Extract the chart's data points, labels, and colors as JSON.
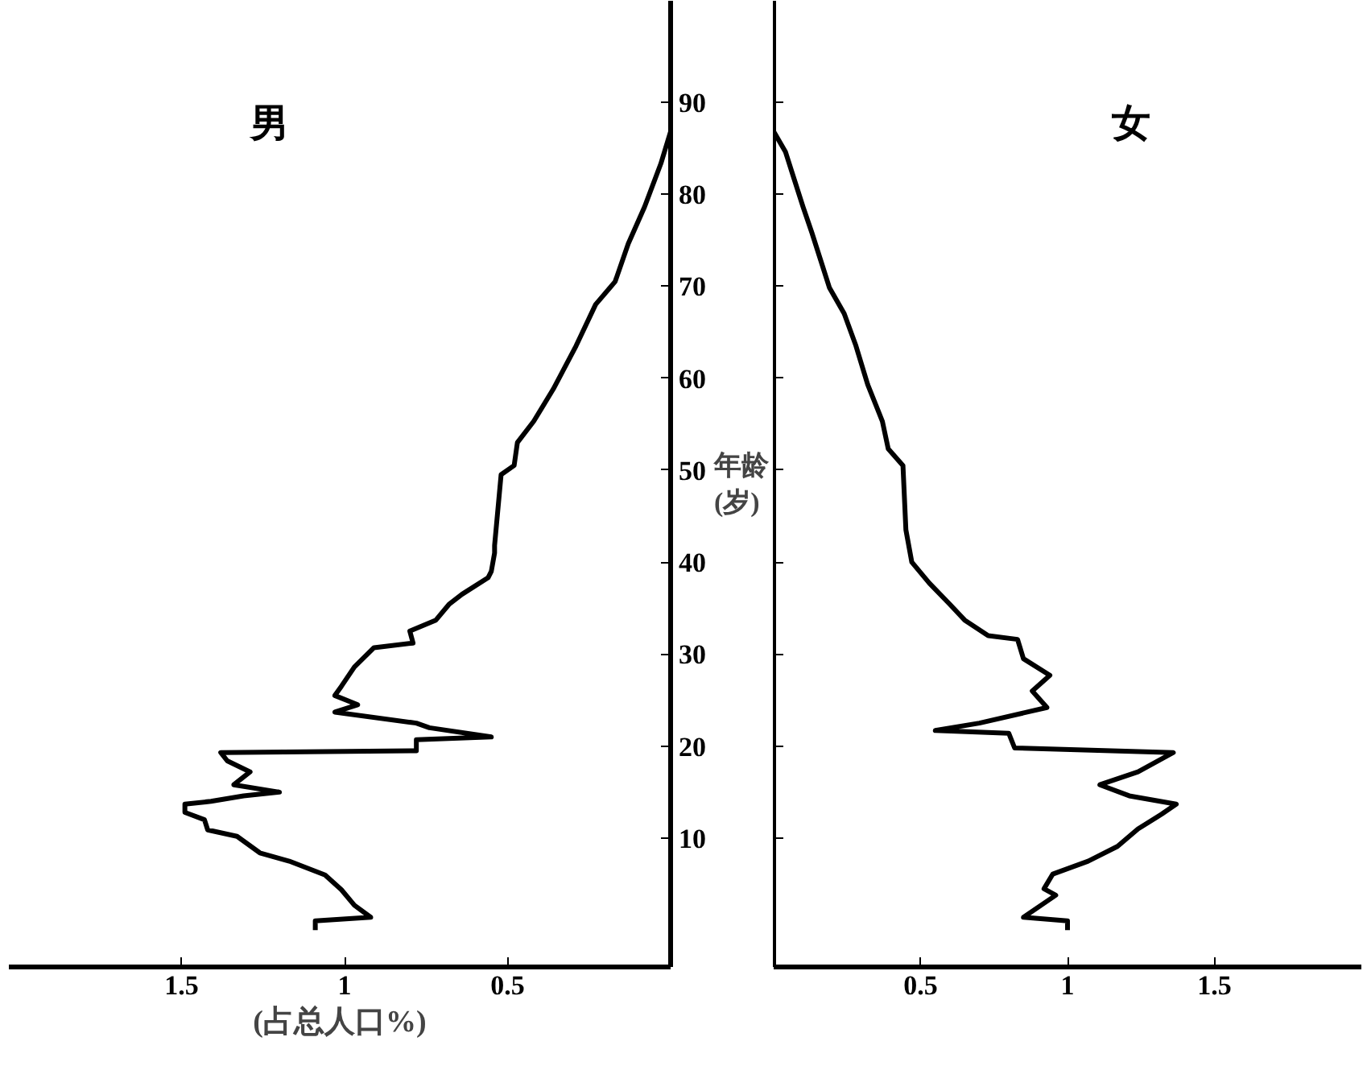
{
  "chart_data": [
    {
      "type": "line",
      "orientation": "horizontal",
      "xlim": [
        2.03,
        0
      ],
      "xticks": [
        0.5,
        1,
        1.5
      ],
      "ylim": [
        -4,
        101
      ],
      "yticks": [
        10,
        20,
        30,
        40,
        50,
        60,
        70,
        80,
        90
      ],
      "ylabel": "年龄\n(岁)",
      "xlabel": "(占总人口%)",
      "grid": false,
      "series": [
        {
          "name": "男",
          "color": "#000000",
          "x": [
            0,
            1,
            1.4,
            2.7,
            4.4,
            6,
            7.5,
            8.4,
            10.2,
            10.9,
            12,
            12.8,
            13.7,
            14,
            14.6,
            15,
            15.8,
            17.2,
            18.4,
            19.3,
            19.5,
            20.7,
            21,
            22,
            22.5,
            23.7,
            24.5,
            25.5,
            26.5,
            28.6,
            30.7,
            31.2,
            32.5,
            33.7,
            35.4,
            36.5,
            38.3,
            39,
            41,
            41.8,
            49.5,
            50.5,
            53,
            55.3,
            58.8,
            63.5,
            68,
            70.5,
            74.6,
            78.6,
            83.3,
            86.8
          ],
          "values": [
            1.09,
            1.09,
            0.92,
            0.97,
            1.01,
            1.06,
            1.17,
            1.26,
            1.33,
            1.42,
            1.43,
            1.49,
            1.49,
            1.41,
            1.31,
            1.2,
            1.34,
            1.29,
            1.36,
            1.38,
            0.78,
            0.78,
            0.55,
            0.74,
            0.78,
            1.03,
            0.96,
            1.03,
            1.01,
            0.97,
            0.91,
            0.79,
            0.8,
            0.72,
            0.68,
            0.64,
            0.56,
            0.55,
            0.54,
            0.54,
            0.52,
            0.48,
            0.47,
            0.42,
            0.36,
            0.29,
            0.23,
            0.17,
            0.13,
            0.08,
            0.03,
            0
          ]
        }
      ]
    },
    {
      "type": "line",
      "orientation": "horizontal",
      "xlim": [
        0,
        2.0
      ],
      "xticks": [
        0.5,
        1,
        1.5
      ],
      "ylim": [
        -4,
        101
      ],
      "yticks": [
        10,
        20,
        30,
        40,
        50,
        60,
        70,
        80,
        90
      ],
      "tick_labels": "x",
      "grid": false,
      "series": [
        {
          "name": "女",
          "color": "#000000",
          "x": [
            0,
            1,
            1.4,
            3.8,
            4.5,
            6.1,
            7.5,
            9.1,
            11,
            12.6,
            13.7,
            14.6,
            15.8,
            17.2,
            19.3,
            19.8,
            21.4,
            21.7,
            22.5,
            24.2,
            26,
            27.7,
            29.5,
            31.6,
            32,
            33.7,
            35.4,
            37.7,
            40,
            43.5,
            50.5,
            52.3,
            55.3,
            59.3,
            63.5,
            67,
            69.8,
            72.8,
            75.8,
            78.6,
            81.6,
            84.6,
            86.8
          ],
          "values": [
            1.0,
            1.0,
            0.85,
            0.96,
            0.92,
            0.95,
            1.07,
            1.17,
            1.24,
            1.32,
            1.37,
            1.21,
            1.11,
            1.24,
            1.36,
            0.82,
            0.8,
            0.55,
            0.7,
            0.93,
            0.88,
            0.94,
            0.85,
            0.83,
            0.73,
            0.65,
            0.6,
            0.53,
            0.47,
            0.45,
            0.44,
            0.39,
            0.37,
            0.32,
            0.28,
            0.24,
            0.19,
            0.16,
            0.13,
            0.1,
            0.07,
            0.04,
            0
          ]
        }
      ]
    }
  ]
}
